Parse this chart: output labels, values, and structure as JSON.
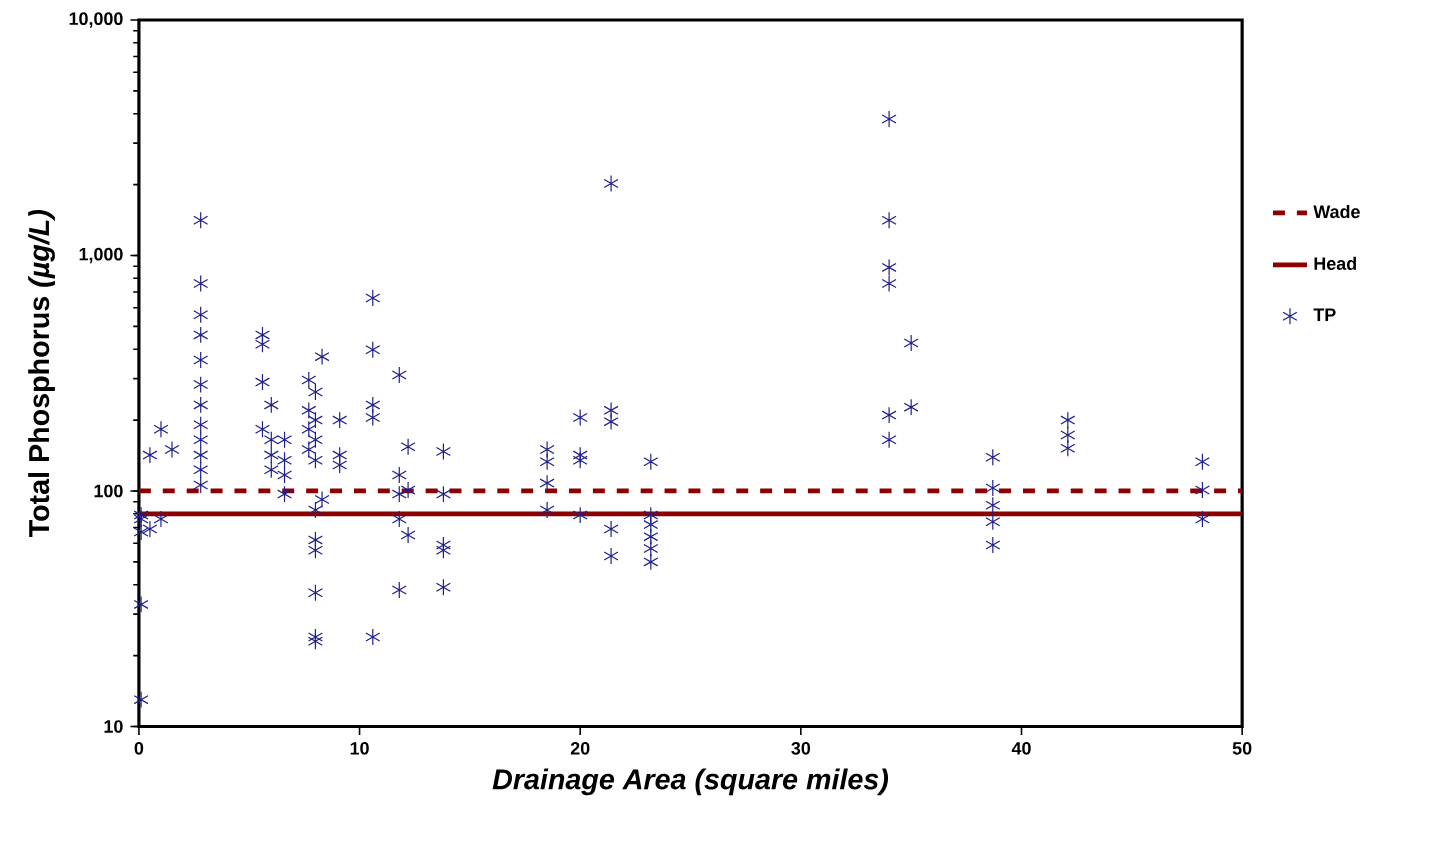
{
  "chart_data": {
    "type": "scatter",
    "xlabel": "Drainage Area  (square miles)",
    "ylabel": "Total Phosphorus  *(µg/L)*",
    "log": "y",
    "xlim": [
      0,
      50
    ],
    "ylim": [
      10,
      10000
    ],
    "xticks": [
      0,
      10,
      20,
      30,
      40,
      50
    ],
    "yticks": [
      10,
      100,
      {
        "value": 1000,
        "label": "1,000"
      },
      {
        "value": 10000,
        "label": "10,000"
      }
    ],
    "grid": false,
    "legend": "right",
    "series": [
      {
        "name": "Wade",
        "type": "line",
        "line_style": "dashed",
        "color": "#8b0000",
        "x": [
          0,
          50
        ],
        "values": [
          100,
          100
        ]
      },
      {
        "name": "Head",
        "type": "line",
        "line_style": "solid",
        "color": "#8b0000",
        "x": [
          0,
          50
        ],
        "values": [
          80,
          80
        ]
      },
      {
        "name": "TP",
        "marker": "cross",
        "color": "#1f1f8c",
        "x": [
          0.1,
          0.1,
          0.1,
          0.1,
          0.1,
          0.5,
          0.5,
          1,
          1,
          1.5,
          2.8,
          2.8,
          2.8,
          2.8,
          2.8,
          2.8,
          2.8,
          2.8,
          2.8,
          2.8,
          2.8,
          2.8,
          5.6,
          5.6,
          5.6,
          5.6,
          6,
          6,
          6,
          6,
          6.6,
          6.6,
          6.6,
          6.6,
          7.7,
          7.7,
          7.7,
          7.7,
          8,
          8,
          8,
          8,
          8,
          8,
          8,
          8,
          8,
          8,
          8.3,
          8.3,
          9.1,
          9.1,
          9.1,
          10.6,
          10.6,
          10.6,
          10.6,
          10.6,
          11.8,
          11.8,
          11.8,
          11.8,
          11.8,
          12.2,
          12.2,
          12.2,
          13.8,
          13.8,
          13.8,
          13.8,
          13.8,
          18.5,
          18.5,
          18.5,
          18.5,
          20,
          20,
          20,
          20,
          21.4,
          21.4,
          21.4,
          21.4,
          21.4,
          23.2,
          23.2,
          23.2,
          23.2,
          23.2,
          23.2,
          34,
          34,
          34,
          34,
          34,
          34,
          35,
          35,
          38.7,
          38.7,
          38.7,
          38.7,
          38.7,
          42.1,
          42.1,
          42.1,
          48.2,
          48.2,
          48.2
        ],
        "values": [
          79,
          76,
          67,
          33,
          13,
          69,
          142,
          183,
          76,
          150,
          1410,
          760,
          560,
          460,
          360,
          283,
          232,
          191,
          165,
          142,
          123,
          106,
          460,
          420,
          290,
          183,
          232,
          165,
          142,
          123,
          165,
          135,
          117,
          97,
          296,
          220,
          183,
          150,
          263,
          200,
          165,
          135,
          83,
          62,
          56,
          37,
          24,
          23,
          372,
          92,
          200,
          142,
          129,
          660,
          398,
          232,
          205,
          24,
          311,
          117,
          97,
          76,
          38,
          154,
          101,
          65,
          147,
          97,
          59,
          56,
          39,
          150,
          133,
          108,
          83,
          205,
          142,
          135,
          79,
          2020,
          220,
          197,
          69,
          53,
          133,
          79,
          72,
          64,
          57,
          50,
          3800,
          1410,
          890,
          760,
          210,
          165,
          425,
          227,
          139,
          103,
          87,
          74,
          59,
          200,
          173,
          152,
          133,
          101,
          76
        ]
      }
    ]
  }
}
